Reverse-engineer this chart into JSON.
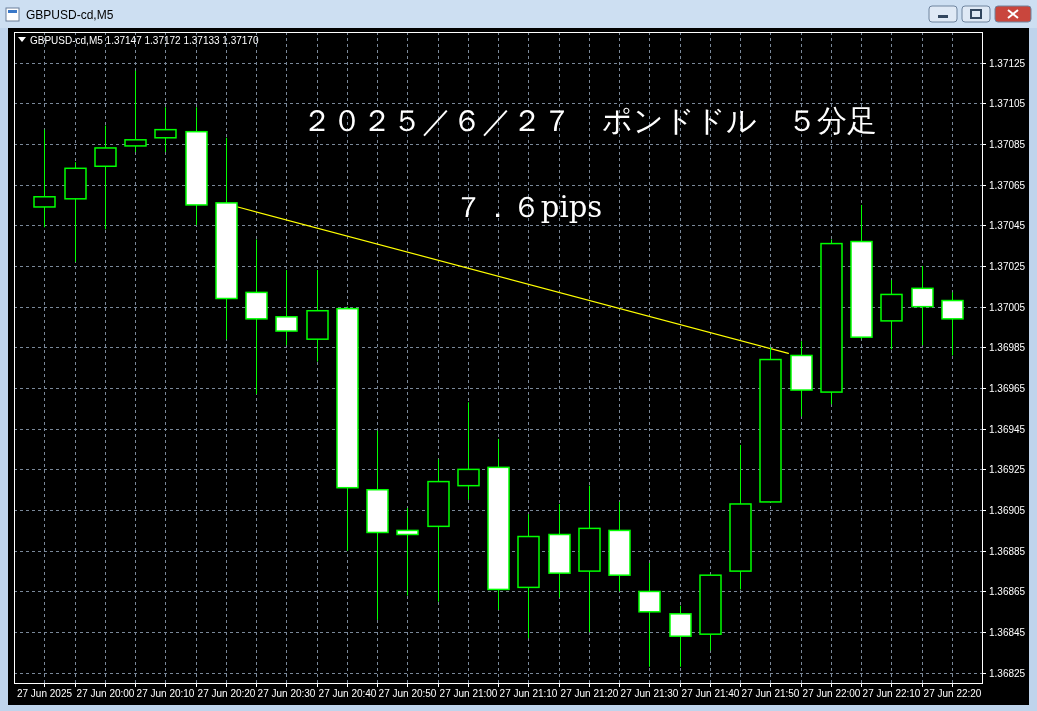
{
  "chart_data": {
    "type": "candlestick",
    "title": "２０２５／６／２７　ポンドドル　５分足",
    "subtitle": "GBPUSD-cd,M5 1.37147 1.37172 1.37133 1.37170",
    "annotations": [
      "GBPUSD-cd,M5",
      "７．６pips"
    ],
    "x": [
      "2025-06-27T19:50",
      "2025-06-27T19:55",
      "2025-06-27T20:00",
      "2025-06-27T20:05",
      "2025-06-27T20:10",
      "2025-06-27T20:15",
      "2025-06-27T20:20",
      "2025-06-27T20:25",
      "2025-06-27T20:30",
      "2025-06-27T20:35",
      "2025-06-27T20:40",
      "2025-06-27T20:45",
      "2025-06-27T20:50",
      "2025-06-27T20:55",
      "2025-06-27T21:00",
      "2025-06-27T21:05",
      "2025-06-27T21:10",
      "2025-06-27T21:15",
      "2025-06-27T21:20",
      "2025-06-27T21:25",
      "2025-06-27T21:30",
      "2025-06-27T21:35",
      "2025-06-27T21:40",
      "2025-06-27T21:45",
      "2025-06-27T21:50",
      "2025-06-27T21:55",
      "2025-06-27T22:00",
      "2025-06-27T22:05",
      "2025-06-27T22:10",
      "2025-06-27T22:15",
      "2025-06-27T22:20"
    ],
    "ohlc": [
      [
        1.37054,
        1.37092,
        1.37044,
        1.37059
      ],
      [
        1.37058,
        1.37076,
        1.37027,
        1.37073
      ],
      [
        1.37074,
        1.37094,
        1.37043,
        1.37083
      ],
      [
        1.37084,
        1.37121,
        1.37081,
        1.37087
      ],
      [
        1.37088,
        1.37103,
        1.37081,
        1.37092
      ],
      [
        1.37091,
        1.37103,
        1.37045,
        1.37055
      ],
      [
        1.37056,
        1.37088,
        1.36989,
        1.37009
      ],
      [
        1.37012,
        1.37038,
        1.36962,
        1.36999
      ],
      [
        1.37,
        1.37023,
        1.36986,
        1.36993
      ],
      [
        1.36989,
        1.37023,
        1.36978,
        1.37003
      ],
      [
        1.37004,
        1.37005,
        1.36885,
        1.36916
      ],
      [
        1.36915,
        1.36944,
        1.36851,
        1.36894
      ],
      [
        1.36895,
        1.36906,
        1.36863,
        1.36893
      ],
      [
        1.36897,
        1.3693,
        1.3686,
        1.36919
      ],
      [
        1.36917,
        1.36958,
        1.3691,
        1.36925
      ],
      [
        1.36926,
        1.3694,
        1.36856,
        1.36866
      ],
      [
        1.36867,
        1.36903,
        1.36842,
        1.36892
      ],
      [
        1.36893,
        1.36908,
        1.36862,
        1.36874
      ],
      [
        1.36875,
        1.36917,
        1.36845,
        1.36896
      ],
      [
        1.36895,
        1.36909,
        1.36865,
        1.36873
      ],
      [
        1.36865,
        1.36879,
        1.36828,
        1.36855
      ],
      [
        1.36854,
        1.36858,
        1.36828,
        1.36843
      ],
      [
        1.36844,
        1.36873,
        1.36836,
        1.36873
      ],
      [
        1.36875,
        1.36937,
        1.36866,
        1.36908
      ],
      [
        1.36909,
        1.36985,
        1.36909,
        1.36979
      ],
      [
        1.36981,
        1.36988,
        1.36951,
        1.36964
      ],
      [
        1.36963,
        1.37038,
        1.36957,
        1.37036
      ],
      [
        1.37037,
        1.37055,
        1.36989,
        1.3699
      ],
      [
        1.36998,
        1.37018,
        1.36984,
        1.37011
      ],
      [
        1.37014,
        1.37025,
        1.36986,
        1.37005
      ],
      [
        1.37008,
        1.37012,
        1.36981,
        1.36999
      ]
    ],
    "color": "#00ff00",
    "colors": [
      "#000000",
      "#000000",
      "#000000",
      "#000000",
      "#000000",
      "#ffffff",
      "#ffffff",
      "#ffffff",
      "#ffffff",
      "#000000",
      "#ffffff",
      "#ffffff",
      "#ffffff",
      "#000000",
      "#000000",
      "#ffffff",
      "#000000",
      "#ffffff",
      "#000000",
      "#ffffff",
      "#ffffff",
      "#ffffff",
      "#000000",
      "#000000",
      "#000000",
      "#ffffff",
      "#000000",
      "#ffffff",
      "#000000",
      "#ffffff",
      "#ffffff"
    ],
    "series": [
      {
        "type": "line",
        "x": [
          "2025-06-27T20:22",
          "2025-06-27T21:53"
        ],
        "values": [
          1.37054,
          1.36982
        ],
        "color": "#ffff00"
      }
    ],
    "xlim": [
      "2025-06-27T19:45",
      "2025-06-27T22:25"
    ],
    "xticks": [
      {
        "value": "2025-06-27T19:50",
        "label": "27 Jun 2025"
      },
      {
        "value": "2025-06-27T19:55",
        "label": null
      },
      {
        "value": "2025-06-27T20:00",
        "label": "27 Jun 20:00"
      },
      {
        "value": "2025-06-27T20:05",
        "label": null
      },
      {
        "value": "2025-06-27T20:10",
        "label": "27 Jun 20:10"
      },
      {
        "value": "2025-06-27T20:15",
        "label": null
      },
      {
        "value": "2025-06-27T20:20",
        "label": "27 Jun 20:20"
      },
      {
        "value": "2025-06-27T20:25",
        "label": null
      },
      {
        "value": "2025-06-27T20:30",
        "label": "27 Jun 20:30"
      },
      {
        "value": "2025-06-27T20:35",
        "label": null
      },
      {
        "value": "2025-06-27T20:40",
        "label": "27 Jun 20:40"
      },
      {
        "value": "2025-06-27T20:45",
        "label": null
      },
      {
        "value": "2025-06-27T20:50",
        "label": "27 Jun 20:50"
      },
      {
        "value": "2025-06-27T20:55",
        "label": null
      },
      {
        "value": "2025-06-27T21:00",
        "label": "27 Jun 21:00"
      },
      {
        "value": "2025-06-27T21:05",
        "label": null
      },
      {
        "value": "2025-06-27T21:10",
        "label": "27 Jun 21:10"
      },
      {
        "value": "2025-06-27T21:15",
        "label": null
      },
      {
        "value": "2025-06-27T21:20",
        "label": "27 Jun 21:20"
      },
      {
        "value": "2025-06-27T21:25",
        "label": null
      },
      {
        "value": "2025-06-27T21:30",
        "label": "27 Jun 21:30"
      },
      {
        "value": "2025-06-27T21:35",
        "label": null
      },
      {
        "value": "2025-06-27T21:40",
        "label": "27 Jun 21:40"
      },
      {
        "value": "2025-06-27T21:45",
        "label": null
      },
      {
        "value": "2025-06-27T21:50",
        "label": "27 Jun 21:50"
      },
      {
        "value": "2025-06-27T21:55",
        "label": null
      },
      {
        "value": "2025-06-27T22:00",
        "label": "27 Jun 22:00"
      },
      {
        "value": "2025-06-27T22:05",
        "label": null
      },
      {
        "value": "2025-06-27T22:10",
        "label": "27 Jun 22:10"
      },
      {
        "value": "2025-06-27T22:15",
        "label": null
      },
      {
        "value": "2025-06-27T22:20",
        "label": "27 Jun 22:20"
      }
    ],
    "ylim": [
      1.3682,
      1.3714
    ],
    "yticks": [
      1.36825,
      1.36845,
      1.36865,
      1.36885,
      1.36905,
      1.36925,
      1.36945,
      1.36965,
      1.36985,
      1.37005,
      1.37025,
      1.37045,
      1.37065,
      1.37085,
      1.37105,
      1.37125
    ],
    "grid": true
  }
}
